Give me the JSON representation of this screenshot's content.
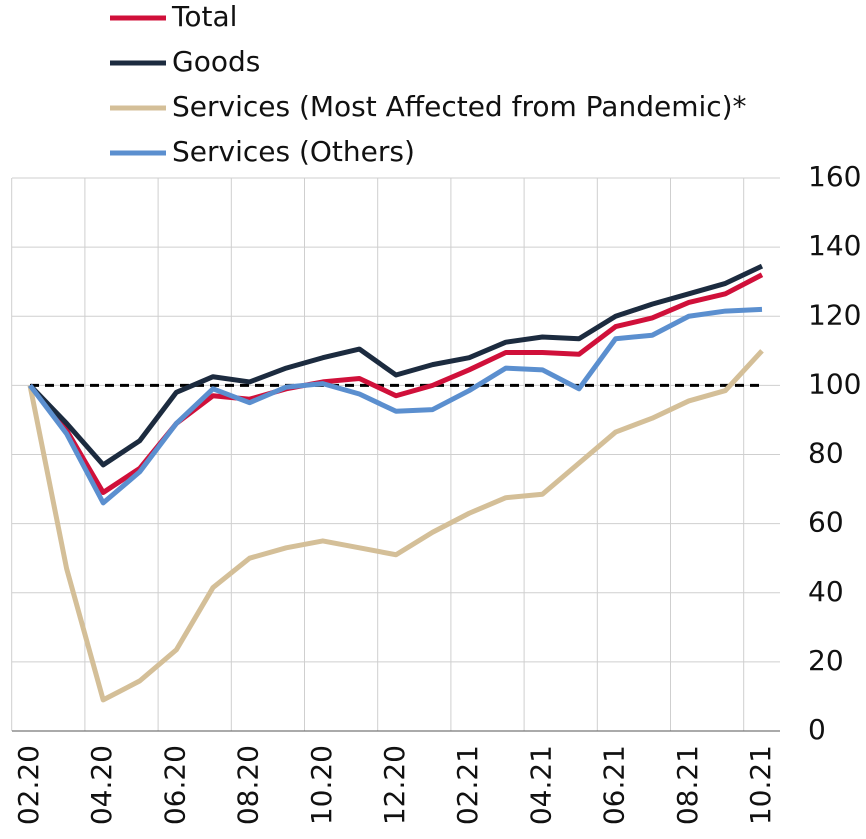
{
  "chart_data": {
    "type": "line",
    "categories": [
      "02.20",
      null,
      "04.20",
      null,
      "06.20",
      null,
      "08.20",
      null,
      "10.20",
      null,
      "12.20",
      null,
      "02.21",
      null,
      "04.21",
      null,
      "06.21",
      null,
      "08.21",
      null,
      "10.21"
    ],
    "series": [
      {
        "name": "Total",
        "color": "#d0103a",
        "values": [
          100,
          87,
          69,
          76,
          89,
          97,
          96,
          99,
          101,
          102,
          97,
          100,
          104.5,
          109.5,
          109.5,
          109,
          117,
          119.5,
          124,
          126.5,
          132
        ]
      },
      {
        "name": "Goods",
        "color": "#1c2b3f",
        "values": [
          100,
          89,
          77,
          84,
          98,
          102.5,
          101,
          105,
          108,
          110.5,
          103,
          106,
          108,
          112.5,
          114,
          113.5,
          120,
          123.5,
          126.5,
          129.5,
          134.5
        ]
      },
      {
        "name": "Services (Most Affected from Pandemic)*",
        "color": "#d4bf98",
        "values": [
          100,
          47,
          9,
          14.5,
          23.5,
          41.5,
          50,
          53,
          55,
          53,
          51,
          57.5,
          63,
          67.5,
          68.5,
          77.5,
          86.5,
          90.5,
          95.5,
          98.5,
          110
        ]
      },
      {
        "name": "Services (Others)",
        "color": "#5b8fcf",
        "values": [
          100,
          86,
          66,
          75,
          89,
          99,
          95,
          99.5,
          100.5,
          97.5,
          92.5,
          93,
          98.5,
          105,
          104.5,
          99,
          113.5,
          114.5,
          120,
          121.5,
          122
        ]
      }
    ],
    "reference_line": 100,
    "ylim": [
      0,
      160
    ],
    "yticks": [
      0,
      20,
      40,
      60,
      80,
      100,
      120,
      140,
      160
    ],
    "grid": true,
    "legend": "top-left"
  }
}
